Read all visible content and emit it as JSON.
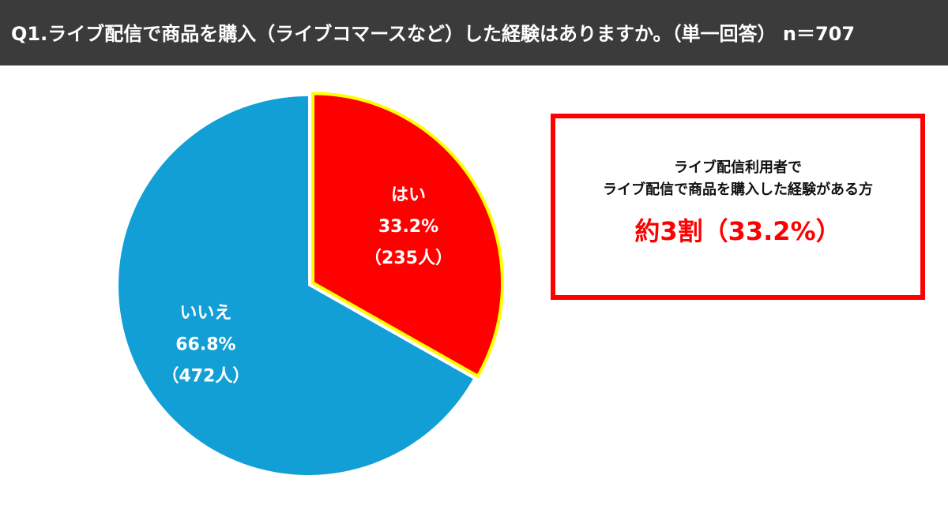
{
  "chart_data": {
    "type": "pie",
    "title": "Q1.ライブ配信で商品を購入（ライブコマースなど）した経験はありますか。（単一回答） n＝707",
    "categories": [
      "はい",
      "いいえ"
    ],
    "values": [
      33.2,
      66.8
    ],
    "value_labels": [
      "33.2%",
      "66.8%"
    ],
    "counts": [
      235,
      472
    ],
    "count_labels": [
      "（235人）",
      "（472人）"
    ],
    "colors": [
      "#ff0000",
      "#129fd6"
    ],
    "annotations": [
      "ライブ配信利用者で",
      "ライブ配信で商品を購入した経験がある方",
      "約3割（33.2%）"
    ]
  }
}
